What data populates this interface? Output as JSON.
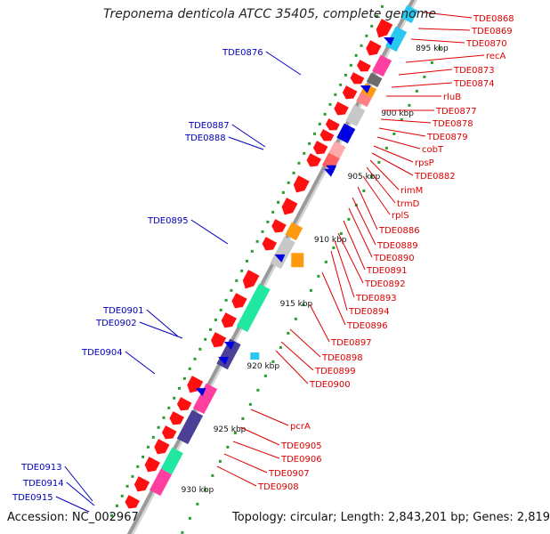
{
  "title": "Treponema denticola ATCC 35405, complete genome",
  "accession": "Accession: NC_002967",
  "topology": "Topology: circular; Length: 2,843,201 bp; Genes: 2,819",
  "colors": {
    "backbone": "#9a9a9a",
    "red_gene": "#ff1010",
    "blue_label": "#0000bb",
    "red_label": "#dd0000",
    "tick": "#2e9a2e"
  },
  "scale_labels": [
    "895 kbp",
    "900 kbp",
    "905 kbp",
    "910 kbp",
    "915 kbp",
    "920 kbp",
    "925 kbp",
    "930 kbp"
  ],
  "left_labels": [
    "TDE0876",
    "TDE0887",
    "TDE0888",
    "TDE0895",
    "TDE0901",
    "TDE0902",
    "TDE0904",
    "TDE0913",
    "TDE0914",
    "TDE0915"
  ],
  "right_labels": [
    "TDE0868",
    "TDE0869",
    "TDE0870",
    "recA",
    "TDE0873",
    "TDE0874",
    "rluB",
    "TDE0877",
    "TDE0878",
    "TDE0879",
    "cobT",
    "rpsP",
    "TDE0882",
    "rimM",
    "trmD",
    "rplS",
    "TDE0886",
    "TDE0889",
    "TDE0890",
    "TDE0891",
    "TDE0892",
    "TDE0893",
    "TDE0894",
    "TDE0896",
    "TDE0897",
    "TDE0898",
    "TDE0899",
    "TDE0900",
    "pcrA",
    "TDE0905",
    "TDE0906",
    "TDE0907",
    "TDE0908"
  ]
}
